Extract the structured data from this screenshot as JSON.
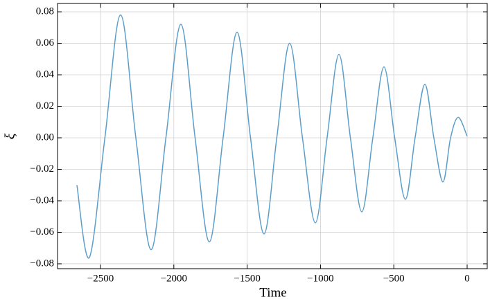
{
  "chart_data": {
    "type": "line",
    "x_label": "Time",
    "y_label": "ξ",
    "x": [
      -2661,
      -2576,
      -2470,
      -2363,
      -2259,
      -2155,
      -2054,
      -1952,
      -1855,
      -1758,
      -1664,
      -1569,
      -1477,
      -1385,
      -1298,
      -1210,
      -1123,
      -1035,
      -955,
      -874,
      -796,
      -718,
      -643,
      -567,
      -494,
      -421,
      -355,
      -288,
      -227,
      -165,
      -113,
      -61,
      0
    ],
    "series": [
      {
        "color": "#5b9ec9",
        "values": [
          -0.03,
          -0.076,
          0.0,
          0.078,
          0.0,
          -0.071,
          0.0,
          0.072,
          0.0,
          -0.066,
          0.0,
          0.067,
          0.0,
          -0.061,
          0.0,
          0.06,
          0.0,
          -0.054,
          0.0,
          0.053,
          0.0,
          -0.047,
          0.0,
          0.045,
          0.0,
          -0.039,
          0.0,
          0.034,
          0.0,
          -0.028,
          0.0,
          0.013,
          0.001
        ]
      }
    ],
    "xlim": [
      -2793,
      137
    ],
    "ylim": [
      -0.0831,
      0.0853
    ],
    "xticks": [
      {
        "value": -2500,
        "label": "−2500"
      },
      {
        "value": -2000,
        "label": "−2000"
      },
      {
        "value": -1500,
        "label": "−1500"
      },
      {
        "value": -1000,
        "label": "−1000"
      },
      {
        "value": -500,
        "label": "−500"
      },
      0
    ],
    "yticks": [
      {
        "value": -0.08,
        "label": "−0.08"
      },
      {
        "value": -0.06,
        "label": "−0.06"
      },
      {
        "value": -0.04,
        "label": "−0.04"
      },
      {
        "value": -0.02,
        "label": "−0.02"
      },
      {
        "value": 0,
        "label": "0.00"
      },
      0.02,
      0.04,
      0.06,
      0.08
    ],
    "grid": true
  }
}
